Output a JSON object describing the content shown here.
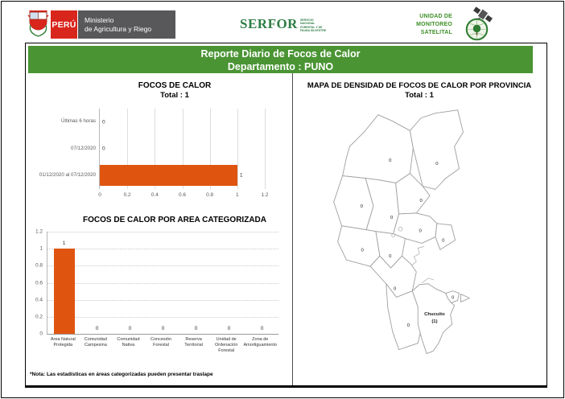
{
  "header": {
    "peru_label": "PERÚ",
    "ministry": {
      "line1": "Ministerio",
      "line2": "de Agricultura y Riego"
    },
    "serfor_label": "SERFOR",
    "serfor_tagline": [
      "SERVICIO",
      "NACIONAL",
      "FORESTAL Y DE",
      "FAUNA SILVESTRE"
    ],
    "unit_lines": [
      "UNIDAD DE",
      "MONITOREO",
      "SATELITAL"
    ],
    "icons": {
      "coat_of_arms": "peru-coat-of-arms",
      "unit_logo": "globe-tree-logo",
      "unit_satellite": "satellite-icon"
    }
  },
  "title_bar": {
    "line1": "Reporte Diario de Focos de Calor",
    "line2": "Departamento : PUNO"
  },
  "chart_data": [
    {
      "type": "bar",
      "orientation": "horizontal",
      "title": "FOCOS DE CALOR",
      "subtitle": "Total : 1",
      "categories": [
        "Últimas 6 horas",
        "07/12/2020",
        "01/12/2020 al 07/12/2020"
      ],
      "values": [
        0,
        0,
        1
      ],
      "xlim": [
        0,
        1.2
      ],
      "tick_labels": [
        "0",
        "0.2",
        "0.4",
        "0.6",
        "0.8",
        "1",
        "1.2"
      ],
      "grid": true,
      "bar_color": "#DF5510"
    },
    {
      "type": "bar",
      "orientation": "vertical",
      "title": "FOCOS DE CALOR POR AREA CATEGORIZADA",
      "categories": [
        "Area Natural Protegida",
        "Comunidad Campesina",
        "Comunidad Nativa",
        "Concesión Forestal",
        "Reserva Territorial",
        "Unidad de Ordenación Forestal",
        "Zona de Amortiguamiento"
      ],
      "values": [
        1,
        0,
        0,
        0,
        0,
        0,
        0
      ],
      "ylim": [
        0,
        1.2
      ],
      "tick_labels": [
        "0",
        "0.2",
        "0.4",
        "0.6",
        "0.8",
        "1",
        "1.2"
      ],
      "grid": true,
      "bar_color": "#DF5510"
    },
    {
      "type": "choropleth",
      "title": "MAPA DE DENSIDAD DE FOCOS DE CALOR POR PROVINCIA",
      "subtitle": "Total : 1",
      "region": "PUNO",
      "highlight": {
        "name": "Chucuito",
        "value": 1,
        "value_label": "(1)",
        "color": "#DF5510"
      },
      "zero_labels": [
        "0",
        "0",
        "0",
        "0",
        "0",
        "0",
        "0",
        "0",
        "0",
        "0",
        "0",
        "0"
      ]
    }
  ],
  "note": "*Nota: Las estadísticas en áreas categorizadas pueden presentar traslape",
  "colors": {
    "title_bar_green": "#4A9434",
    "bar_orange": "#DF5510",
    "peru_red": "#D9261C",
    "ministry_gray": "#58585A",
    "brand_green": "#2E7D44",
    "unit_green": "#3E8F28"
  }
}
